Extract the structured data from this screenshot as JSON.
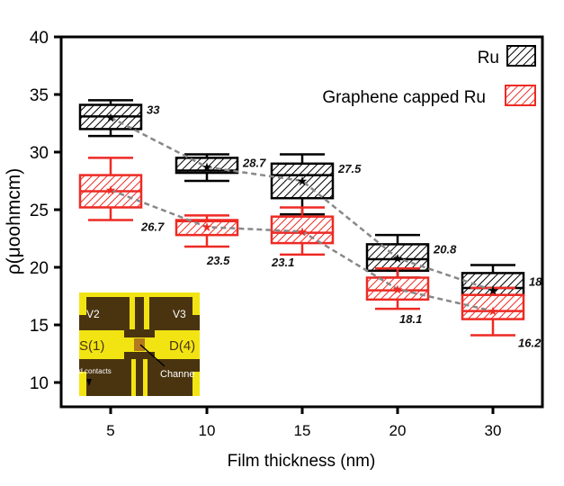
{
  "chart_data": {
    "type": "box",
    "xlabel": "Film thickness (nm)",
    "ylabel": "ρ(μoohmcm)",
    "categories": [
      "5",
      "10",
      "15",
      "20",
      "30"
    ],
    "ylim": [
      7.9,
      40
    ],
    "yticks": [
      "10",
      "15",
      "20",
      "25",
      "30",
      "35",
      "40"
    ],
    "legend_position": "top-right",
    "series": [
      {
        "name": "Ru",
        "color": "#000000",
        "boxes": [
          {
            "whisker_low": 31.4,
            "q1": 32.0,
            "median": 33.1,
            "q3": 34.1,
            "whisker_high": 34.5,
            "mean": 33,
            "label": "33"
          },
          {
            "whisker_low": 27.5,
            "q1": 28.2,
            "median": 28.4,
            "q3": 29.5,
            "whisker_high": 29.8,
            "mean": 28.7,
            "label": "28.7"
          },
          {
            "whisker_low": 24.6,
            "q1": 26.0,
            "median": 28.0,
            "q3": 29.0,
            "whisker_high": 29.8,
            "mean": 27.5,
            "label": "27.5"
          },
          {
            "whisker_low": 19.1,
            "q1": 19.7,
            "median": 20.7,
            "q3": 22.0,
            "whisker_high": 22.8,
            "mean": 20.8,
            "label": "20.8"
          },
          {
            "whisker_low": 17.0,
            "q1": 17.6,
            "median": 18.2,
            "q3": 19.5,
            "whisker_high": 20.2,
            "mean": 18,
            "label": "18"
          }
        ]
      },
      {
        "name": "Graphene capped Ru",
        "color": "#ee2a24",
        "boxes": [
          {
            "whisker_low": 24.1,
            "q1": 25.2,
            "median": 26.6,
            "q3": 28.0,
            "whisker_high": 29.5,
            "mean": 26.7,
            "label": "26.7"
          },
          {
            "whisker_low": 21.8,
            "q1": 22.8,
            "median": 24.0,
            "q3": 24.1,
            "whisker_high": 24.5,
            "mean": 23.5,
            "label": "23.5"
          },
          {
            "whisker_low": 21.1,
            "q1": 22.1,
            "median": 23.0,
            "q3": 24.4,
            "whisker_high": 25.2,
            "mean": 23.1,
            "label": "23.1"
          },
          {
            "whisker_low": 16.4,
            "q1": 17.2,
            "median": 18.0,
            "q3": 19.1,
            "whisker_high": 19.9,
            "mean": 18.1,
            "label": "18.1"
          },
          {
            "whisker_low": 14.1,
            "q1": 15.5,
            "median": 16.2,
            "q3": 17.6,
            "whisker_high": 18.2,
            "mean": 16.2,
            "label": "16.2"
          }
        ]
      }
    ],
    "inset": {
      "labels": [
        "V2",
        "V3",
        "S(1)",
        "D(4)",
        "Pd contacts",
        "Channe"
      ]
    }
  }
}
